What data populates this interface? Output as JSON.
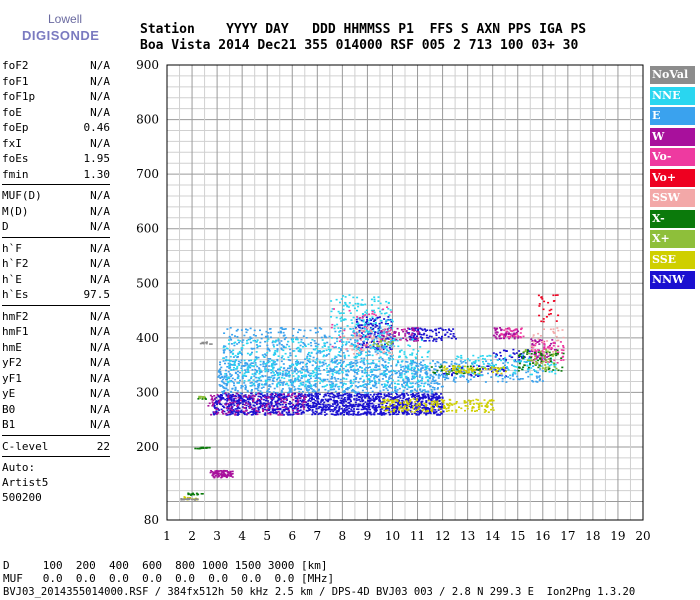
{
  "logo": {
    "line1": "Lowell",
    "line2": "DIGISONDE"
  },
  "header": {
    "labels": "Station    YYYY DAY   DDD HHMMSS P1  FFS S AXN PPS IGA PS",
    "values": "Boa Vista 2014 Dec21 355 014000 RSF 005 2 713 100 03+ 30"
  },
  "params": {
    "group1": [
      {
        "name": "foF2",
        "value": "N/A"
      },
      {
        "name": "foF1",
        "value": "N/A"
      },
      {
        "name": "foF1p",
        "value": "N/A"
      },
      {
        "name": "foE",
        "value": "N/A"
      },
      {
        "name": "foEp",
        "value": "0.46"
      },
      {
        "name": "fxI",
        "value": "N/A"
      },
      {
        "name": "foEs",
        "value": "1.95"
      },
      {
        "name": "fmin",
        "value": "1.30"
      }
    ],
    "group2": [
      {
        "name": "MUF(D)",
        "value": "N/A"
      },
      {
        "name": "M(D)",
        "value": "N/A"
      },
      {
        "name": "D",
        "value": "N/A"
      }
    ],
    "group3": [
      {
        "name": "h`F",
        "value": "N/A"
      },
      {
        "name": "h`F2",
        "value": "N/A"
      },
      {
        "name": "h`E",
        "value": "N/A"
      },
      {
        "name": "h`Es",
        "value": "97.5"
      }
    ],
    "group4": [
      {
        "name": "hmF2",
        "value": "N/A"
      },
      {
        "name": "hmF1",
        "value": "N/A"
      },
      {
        "name": "hmE",
        "value": "N/A"
      },
      {
        "name": "yF2",
        "value": "N/A"
      },
      {
        "name": "yF1",
        "value": "N/A"
      },
      {
        "name": "yE",
        "value": "N/A"
      },
      {
        "name": "B0",
        "value": "N/A"
      },
      {
        "name": "B1",
        "value": "N/A"
      }
    ],
    "clevel": {
      "name": "C-level",
      "value": "22"
    },
    "auto": [
      "Auto:",
      "Artist5",
      "500200"
    ]
  },
  "legend": [
    {
      "label": "NoVal",
      "color": "#8c8c8c"
    },
    {
      "label": "NNE",
      "color": "#29d6f0"
    },
    {
      "label": "E",
      "color": "#3aa2ee"
    },
    {
      "label": "W",
      "color": "#a8109c"
    },
    {
      "label": "Vo-",
      "color": "#ee3aa0"
    },
    {
      "label": "Vo+",
      "color": "#ee0020"
    },
    {
      "label": "SSW",
      "color": "#f3a8a8"
    },
    {
      "label": "X-",
      "color": "#0b7a0b"
    },
    {
      "label": "X+",
      "color": "#8ebf3a"
    },
    {
      "label": "SSE",
      "color": "#cfcf00"
    },
    {
      "label": "NNW",
      "color": "#1a10d0"
    }
  ],
  "bottom": {
    "drow": "D     100  200  400  600  800 1000 1500 3000 [km]",
    "mufrow": "MUF   0.0  0.0  0.0  0.0  0.0  0.0  0.0  0.0 [MHz]",
    "footer": "BVJ03_2014355014000.RSF / 384fx512h 50 kHz 2.5 km / DPS-4D BVJ03 003 / 2.8 N 299.3 E  Ion2Png 1.3.20"
  },
  "chart_data": {
    "type": "scatter",
    "title": "",
    "xlabel": "",
    "ylabel": "",
    "xlim": [
      1,
      20
    ],
    "ylim": [
      80,
      900
    ],
    "x_ticks": [
      1,
      2,
      3,
      4,
      5,
      6,
      7,
      8,
      9,
      10,
      11,
      12,
      13,
      14,
      15,
      16,
      17,
      18,
      19,
      20
    ],
    "y_ticks": [
      80,
      100,
      200,
      300,
      400,
      500,
      600,
      700,
      800,
      900
    ],
    "y_tick_labels": [
      "80",
      "",
      "200",
      "300",
      "400",
      "500",
      "600",
      "700",
      "800",
      "900"
    ],
    "grid": true,
    "legend_position": "right",
    "series": [
      {
        "name": "NNW",
        "color": "#1a10d0",
        "regions": [
          [
            2.8,
            12.0,
            260,
            300,
            1400
          ],
          [
            8.5,
            10.0,
            380,
            440,
            150
          ],
          [
            10.5,
            12.5,
            395,
            420,
            90
          ],
          [
            14.0,
            15.5,
            360,
            380,
            40
          ],
          [
            12.0,
            14.5,
            330,
            350,
            60
          ]
        ]
      },
      {
        "name": "E",
        "color": "#3aa2ee",
        "regions": [
          [
            3.0,
            12.0,
            300,
            360,
            900
          ],
          [
            3.2,
            10.0,
            360,
            420,
            300
          ],
          [
            12.0,
            16.0,
            320,
            360,
            120
          ]
        ]
      },
      {
        "name": "NNE",
        "color": "#29d6f0",
        "regions": [
          [
            3.2,
            11.5,
            310,
            400,
            500
          ],
          [
            7.5,
            10.0,
            400,
            480,
            150
          ],
          [
            12.5,
            16.5,
            330,
            370,
            120
          ]
        ]
      },
      {
        "name": "W",
        "color": "#a8109c",
        "regions": [
          [
            2.6,
            6.5,
            260,
            300,
            160
          ],
          [
            2.7,
            3.6,
            145,
            158,
            90
          ],
          [
            9.5,
            11.0,
            395,
            420,
            60
          ],
          [
            14.0,
            15.0,
            400,
            420,
            60
          ],
          [
            15.5,
            16.5,
            360,
            400,
            50
          ]
        ]
      },
      {
        "name": "Vo-",
        "color": "#ee3aa0",
        "regions": [
          [
            15.5,
            16.8,
            355,
            395,
            60
          ],
          [
            14.2,
            15.2,
            400,
            420,
            30
          ],
          [
            7.5,
            10.5,
            380,
            460,
            40
          ]
        ]
      },
      {
        "name": "Vo+",
        "color": "#ee0020",
        "regions": [
          [
            15.8,
            16.6,
            430,
            480,
            25
          ]
        ]
      },
      {
        "name": "SSW",
        "color": "#f3a8a8",
        "regions": [
          [
            8.0,
            10.0,
            370,
            420,
            60
          ],
          [
            15.5,
            16.8,
            370,
            420,
            30
          ]
        ]
      },
      {
        "name": "X-",
        "color": "#0b7a0b",
        "regions": [
          [
            1.8,
            2.4,
            113,
            117,
            14
          ],
          [
            2.0,
            2.7,
            198,
            201,
            16
          ],
          [
            2.2,
            2.6,
            289,
            292,
            10
          ],
          [
            15.0,
            16.8,
            340,
            380,
            60
          ],
          [
            11.5,
            13.5,
            335,
            350,
            30
          ]
        ]
      },
      {
        "name": "X+",
        "color": "#8ebf3a",
        "regions": [
          [
            2.2,
            2.5,
            290,
            294,
            8
          ],
          [
            15.2,
            16.6,
            340,
            380,
            40
          ],
          [
            9.0,
            10.0,
            385,
            400,
            15
          ]
        ]
      },
      {
        "name": "SSE",
        "color": "#cfcf00",
        "regions": [
          [
            9.5,
            14.0,
            265,
            290,
            200
          ],
          [
            12.0,
            14.5,
            335,
            350,
            70
          ],
          [
            1.6,
            2.2,
            104,
            110,
            12
          ]
        ]
      },
      {
        "name": "NoVal",
        "color": "#8c8c8c",
        "regions": [
          [
            1.5,
            2.2,
            104,
            107,
            20
          ],
          [
            2.3,
            2.8,
            390,
            394,
            10
          ]
        ]
      }
    ]
  }
}
